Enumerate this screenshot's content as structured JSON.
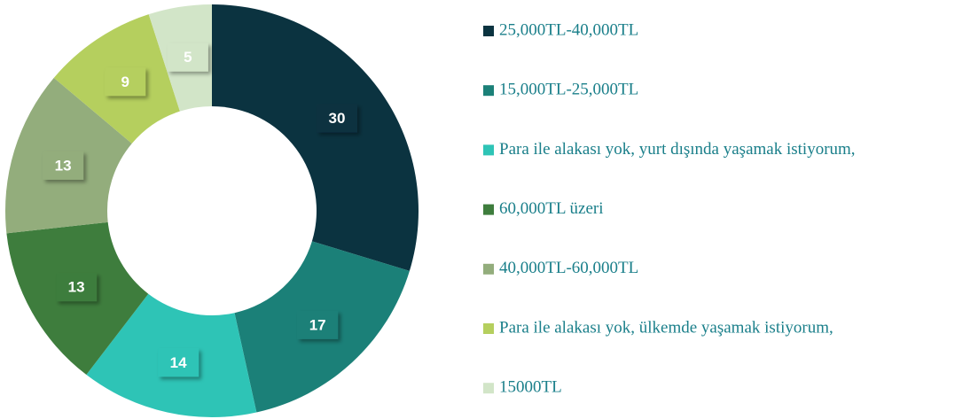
{
  "chart_data": {
    "type": "donut",
    "categories": [
      "25,000TL-40,000TL",
      "15,000TL-25,000TL",
      "Para ile alakası yok, yurt dışında yaşamak istiyorum,",
      "60,000TL üzeri",
      "40,000TL-60,000TL",
      "Para ile alakası yok, ülkemde yaşamak istiyorum,",
      "15000TL"
    ],
    "values": [
      30,
      17,
      14,
      13,
      13,
      9,
      5
    ],
    "colors": [
      "#0b3340",
      "#1b8078",
      "#2ec4b6",
      "#3e7d3d",
      "#93ad7c",
      "#b5cf5e",
      "#d2e5c8"
    ],
    "legend": "right"
  }
}
